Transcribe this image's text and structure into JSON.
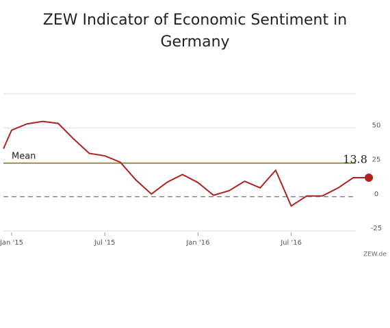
{
  "chart_data": {
    "type": "line",
    "title": "ZEW Indicator of Economic Sentiment in Germany",
    "categories": [
      null,
      "Jan '15",
      null,
      null,
      null,
      null,
      null,
      "Jul '15",
      null,
      null,
      null,
      null,
      null,
      "Jan '16",
      null,
      null,
      null,
      null,
      null,
      "Jul '16",
      null,
      null,
      null,
      null,
      null
    ],
    "series": [
      {
        "name": "ZEW Indicator of Economic Sentiment",
        "color": "#b0201c",
        "values": [
          34.9,
          48.4,
          53.0,
          54.8,
          53.3,
          41.9,
          31.5,
          29.7,
          25.0,
          12.1,
          1.9,
          10.4,
          16.1,
          10.2,
          1.0,
          4.3,
          11.2,
          6.4,
          19.2,
          -6.8,
          0.5,
          0.5,
          6.2,
          13.8,
          13.8
        ]
      }
    ],
    "mean": {
      "label": "Mean",
      "value": 24.3,
      "color": "#8c7a2c"
    },
    "ylim": [
      -25,
      75
    ],
    "yticks": [
      -25,
      0,
      25,
      50
    ],
    "grid": true,
    "source": "ZEW.de"
  }
}
